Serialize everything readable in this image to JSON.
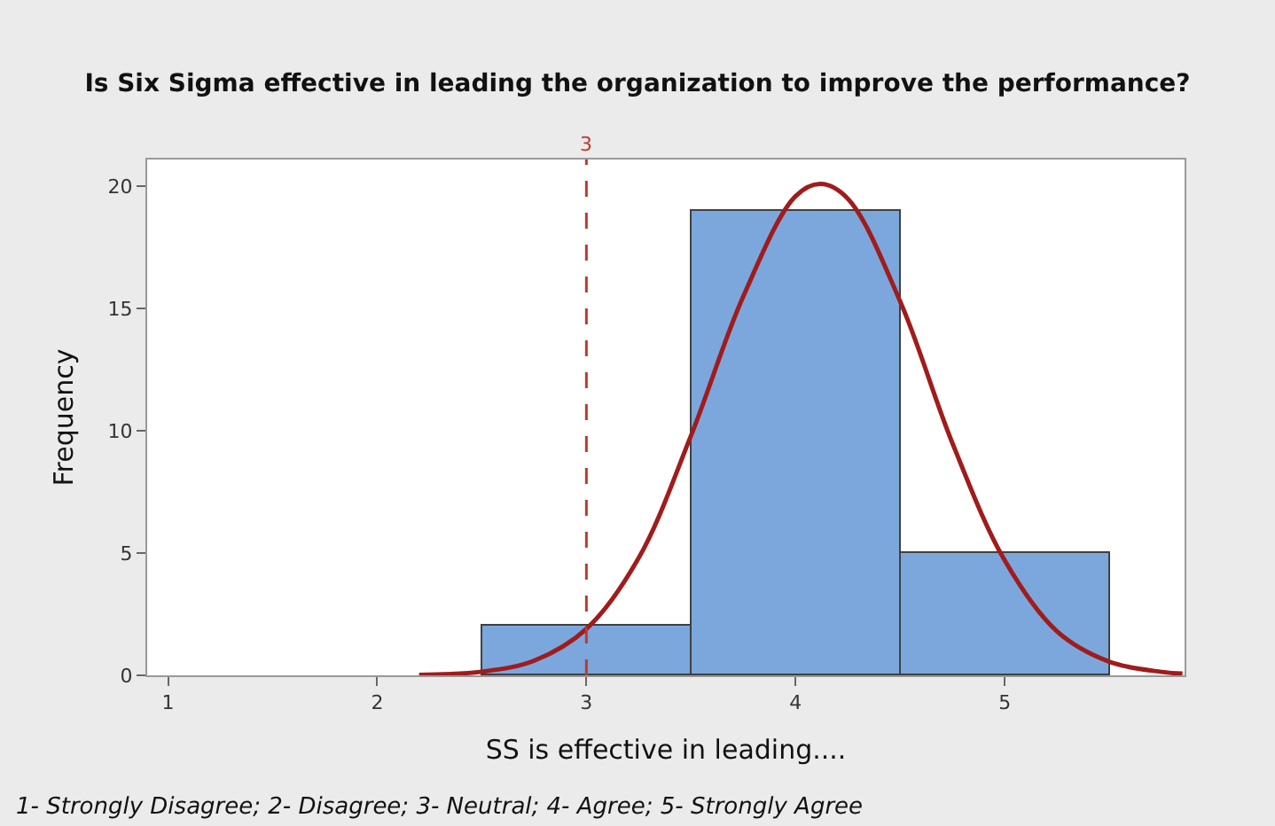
{
  "chart_data": {
    "type": "histogram",
    "title": "Is Six Sigma effective in leading the organization to improve the performance?",
    "xlabel": "SS is effective in leading....",
    "ylabel": "Frequency",
    "bins": [
      2.5,
      3.5,
      4.5,
      5.5
    ],
    "values": [
      2,
      19,
      5
    ],
    "color": "#7ba7dc",
    "series": [
      {
        "type": "line",
        "color": "#a01c1c",
        "x": [
          2.2,
          2.5,
          2.75,
          3.0,
          3.25,
          3.5,
          3.75,
          4.0,
          4.12,
          4.25,
          4.5,
          4.75,
          5.0,
          5.25,
          5.5,
          5.75,
          5.85
        ],
        "values": [
          0.02,
          0.15,
          0.6,
          1.9,
          4.8,
          9.8,
          15.5,
          19.6,
          20.1,
          19.5,
          15.3,
          9.5,
          4.7,
          1.8,
          0.56,
          0.14,
          0.07
        ]
      }
    ],
    "xlim": [
      0.9,
      5.86
    ],
    "xticks": [
      1,
      2,
      3,
      4,
      5
    ],
    "ylim": [
      0,
      21.1
    ],
    "yticks": [
      0,
      5,
      10,
      15,
      20
    ],
    "ref_lines": [
      {
        "axis": "x",
        "value": 3,
        "label": "3",
        "color": "#c0392b",
        "line_style": "dashed"
      }
    ],
    "annotations": [
      "1- Strongly Disagree; 2- Disagree; 3- Neutral; 4- Agree; 5- Strongly Agree"
    ]
  }
}
